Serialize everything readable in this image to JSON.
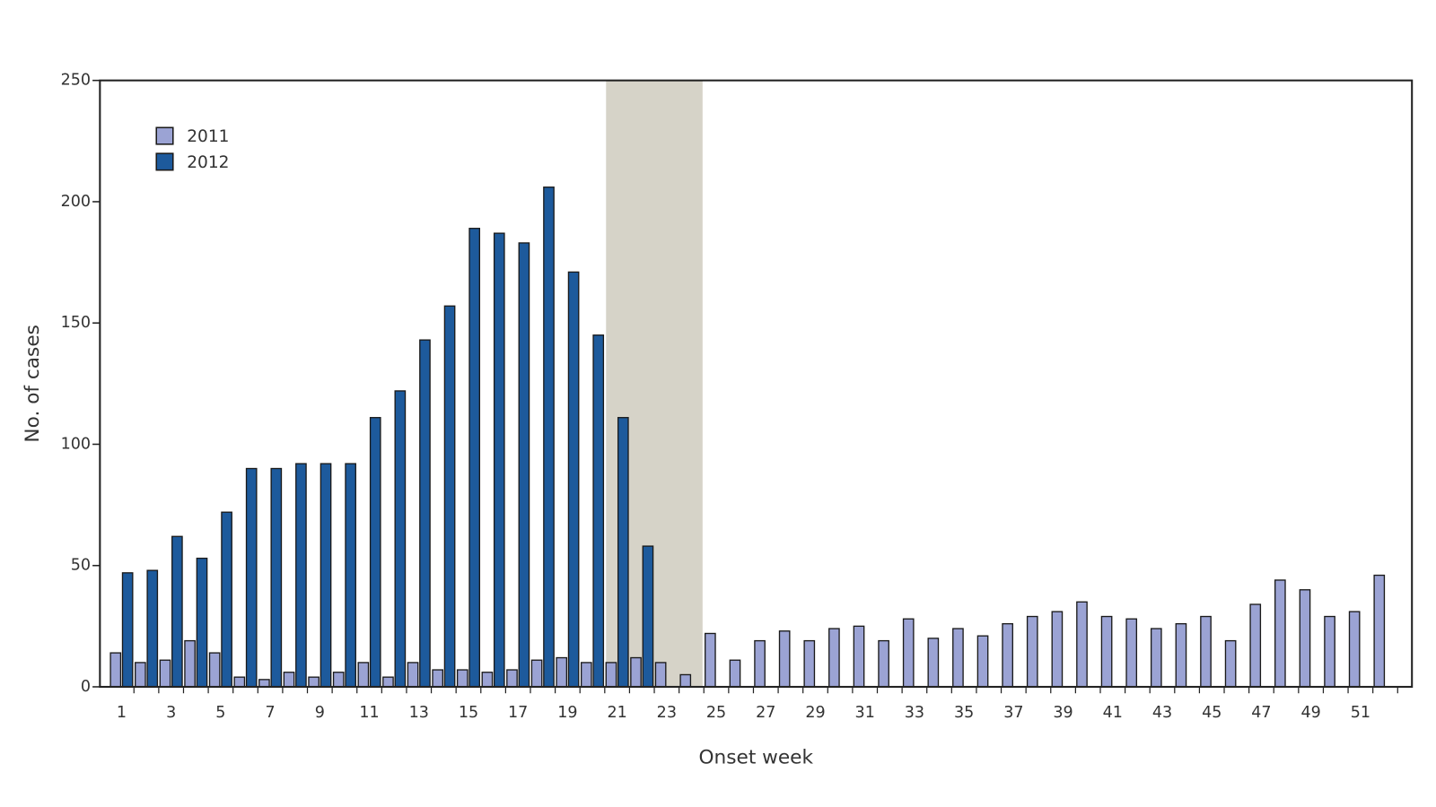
{
  "chart_data": {
    "type": "bar",
    "x_label": "Onset week",
    "y_label": "No. of cases",
    "categories": [
      1,
      null,
      3,
      null,
      5,
      null,
      7,
      null,
      9,
      null,
      11,
      null,
      13,
      null,
      15,
      null,
      17,
      null,
      19,
      null,
      21,
      null,
      23,
      null,
      25,
      null,
      27,
      null,
      29,
      null,
      31,
      null,
      33,
      null,
      35,
      null,
      37,
      null,
      39,
      null,
      41,
      null,
      43,
      null,
      45,
      null,
      47,
      null,
      49,
      null,
      51,
      null
    ],
    "series": [
      {
        "name": "2011",
        "color": "#9ba3d4",
        "values": [
          14,
          10,
          11,
          19,
          14,
          4,
          3,
          6,
          4,
          6,
          10,
          4,
          10,
          7,
          7,
          6,
          7,
          11,
          12,
          10,
          10,
          12,
          10,
          5,
          22,
          11,
          19,
          23,
          19,
          24,
          25,
          19,
          28,
          20,
          24,
          21,
          26,
          29,
          31,
          35,
          29,
          28,
          24,
          26,
          29,
          19,
          34,
          44,
          40,
          29,
          31,
          46
        ]
      },
      {
        "name": "2012",
        "color": "#1d5a9c",
        "values": [
          47,
          48,
          62,
          53,
          72,
          90,
          90,
          92,
          92,
          92,
          111,
          122,
          143,
          157,
          189,
          187,
          183,
          206,
          171,
          145,
          111,
          58,
          null,
          null,
          null,
          null,
          null,
          null,
          null,
          null,
          null,
          null,
          null,
          null,
          null,
          null,
          null,
          null,
          null,
          null,
          null,
          null,
          null,
          null,
          null,
          null,
          null,
          null,
          null,
          null,
          null,
          null
        ]
      }
    ],
    "shaded_weeks": [
      21,
      24
    ],
    "shade_color": "#d6d3c8",
    "ylim": [
      0,
      250
    ],
    "yticks": [
      0,
      50,
      100,
      150,
      200,
      250
    ],
    "legend": "upper left"
  }
}
